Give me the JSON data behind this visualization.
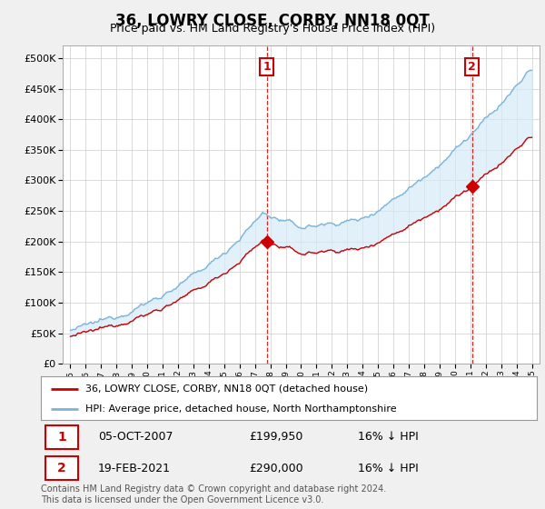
{
  "title": "36, LOWRY CLOSE, CORBY, NN18 0QT",
  "subtitle": "Price paid vs. HM Land Registry's House Price Index (HPI)",
  "legend_line1": "36, LOWRY CLOSE, CORBY, NN18 0QT (detached house)",
  "legend_line2": "HPI: Average price, detached house, North Northamptonshire",
  "transaction1_label": "1",
  "transaction1_date": "05-OCT-2007",
  "transaction1_price": "£199,950",
  "transaction1_hpi": "16% ↓ HPI",
  "transaction2_label": "2",
  "transaction2_date": "19-FEB-2021",
  "transaction2_price": "£290,000",
  "transaction2_hpi": "16% ↓ HPI",
  "footnote": "Contains HM Land Registry data © Crown copyright and database right 2024.\nThis data is licensed under the Open Government Licence v3.0.",
  "hpi_color": "#7ab4d8",
  "hpi_fill_color": "#d6eaf8",
  "price_color": "#cc0000",
  "marker1_date_x": 2007.76,
  "marker1_price_y": 199950,
  "marker2_date_x": 2021.12,
  "marker2_price_y": 290000,
  "ylim_min": 0,
  "ylim_max": 520000,
  "xlim_min": 1994.5,
  "xlim_max": 2025.5,
  "background_color": "#f0f0f0",
  "plot_bg_color": "#ffffff"
}
